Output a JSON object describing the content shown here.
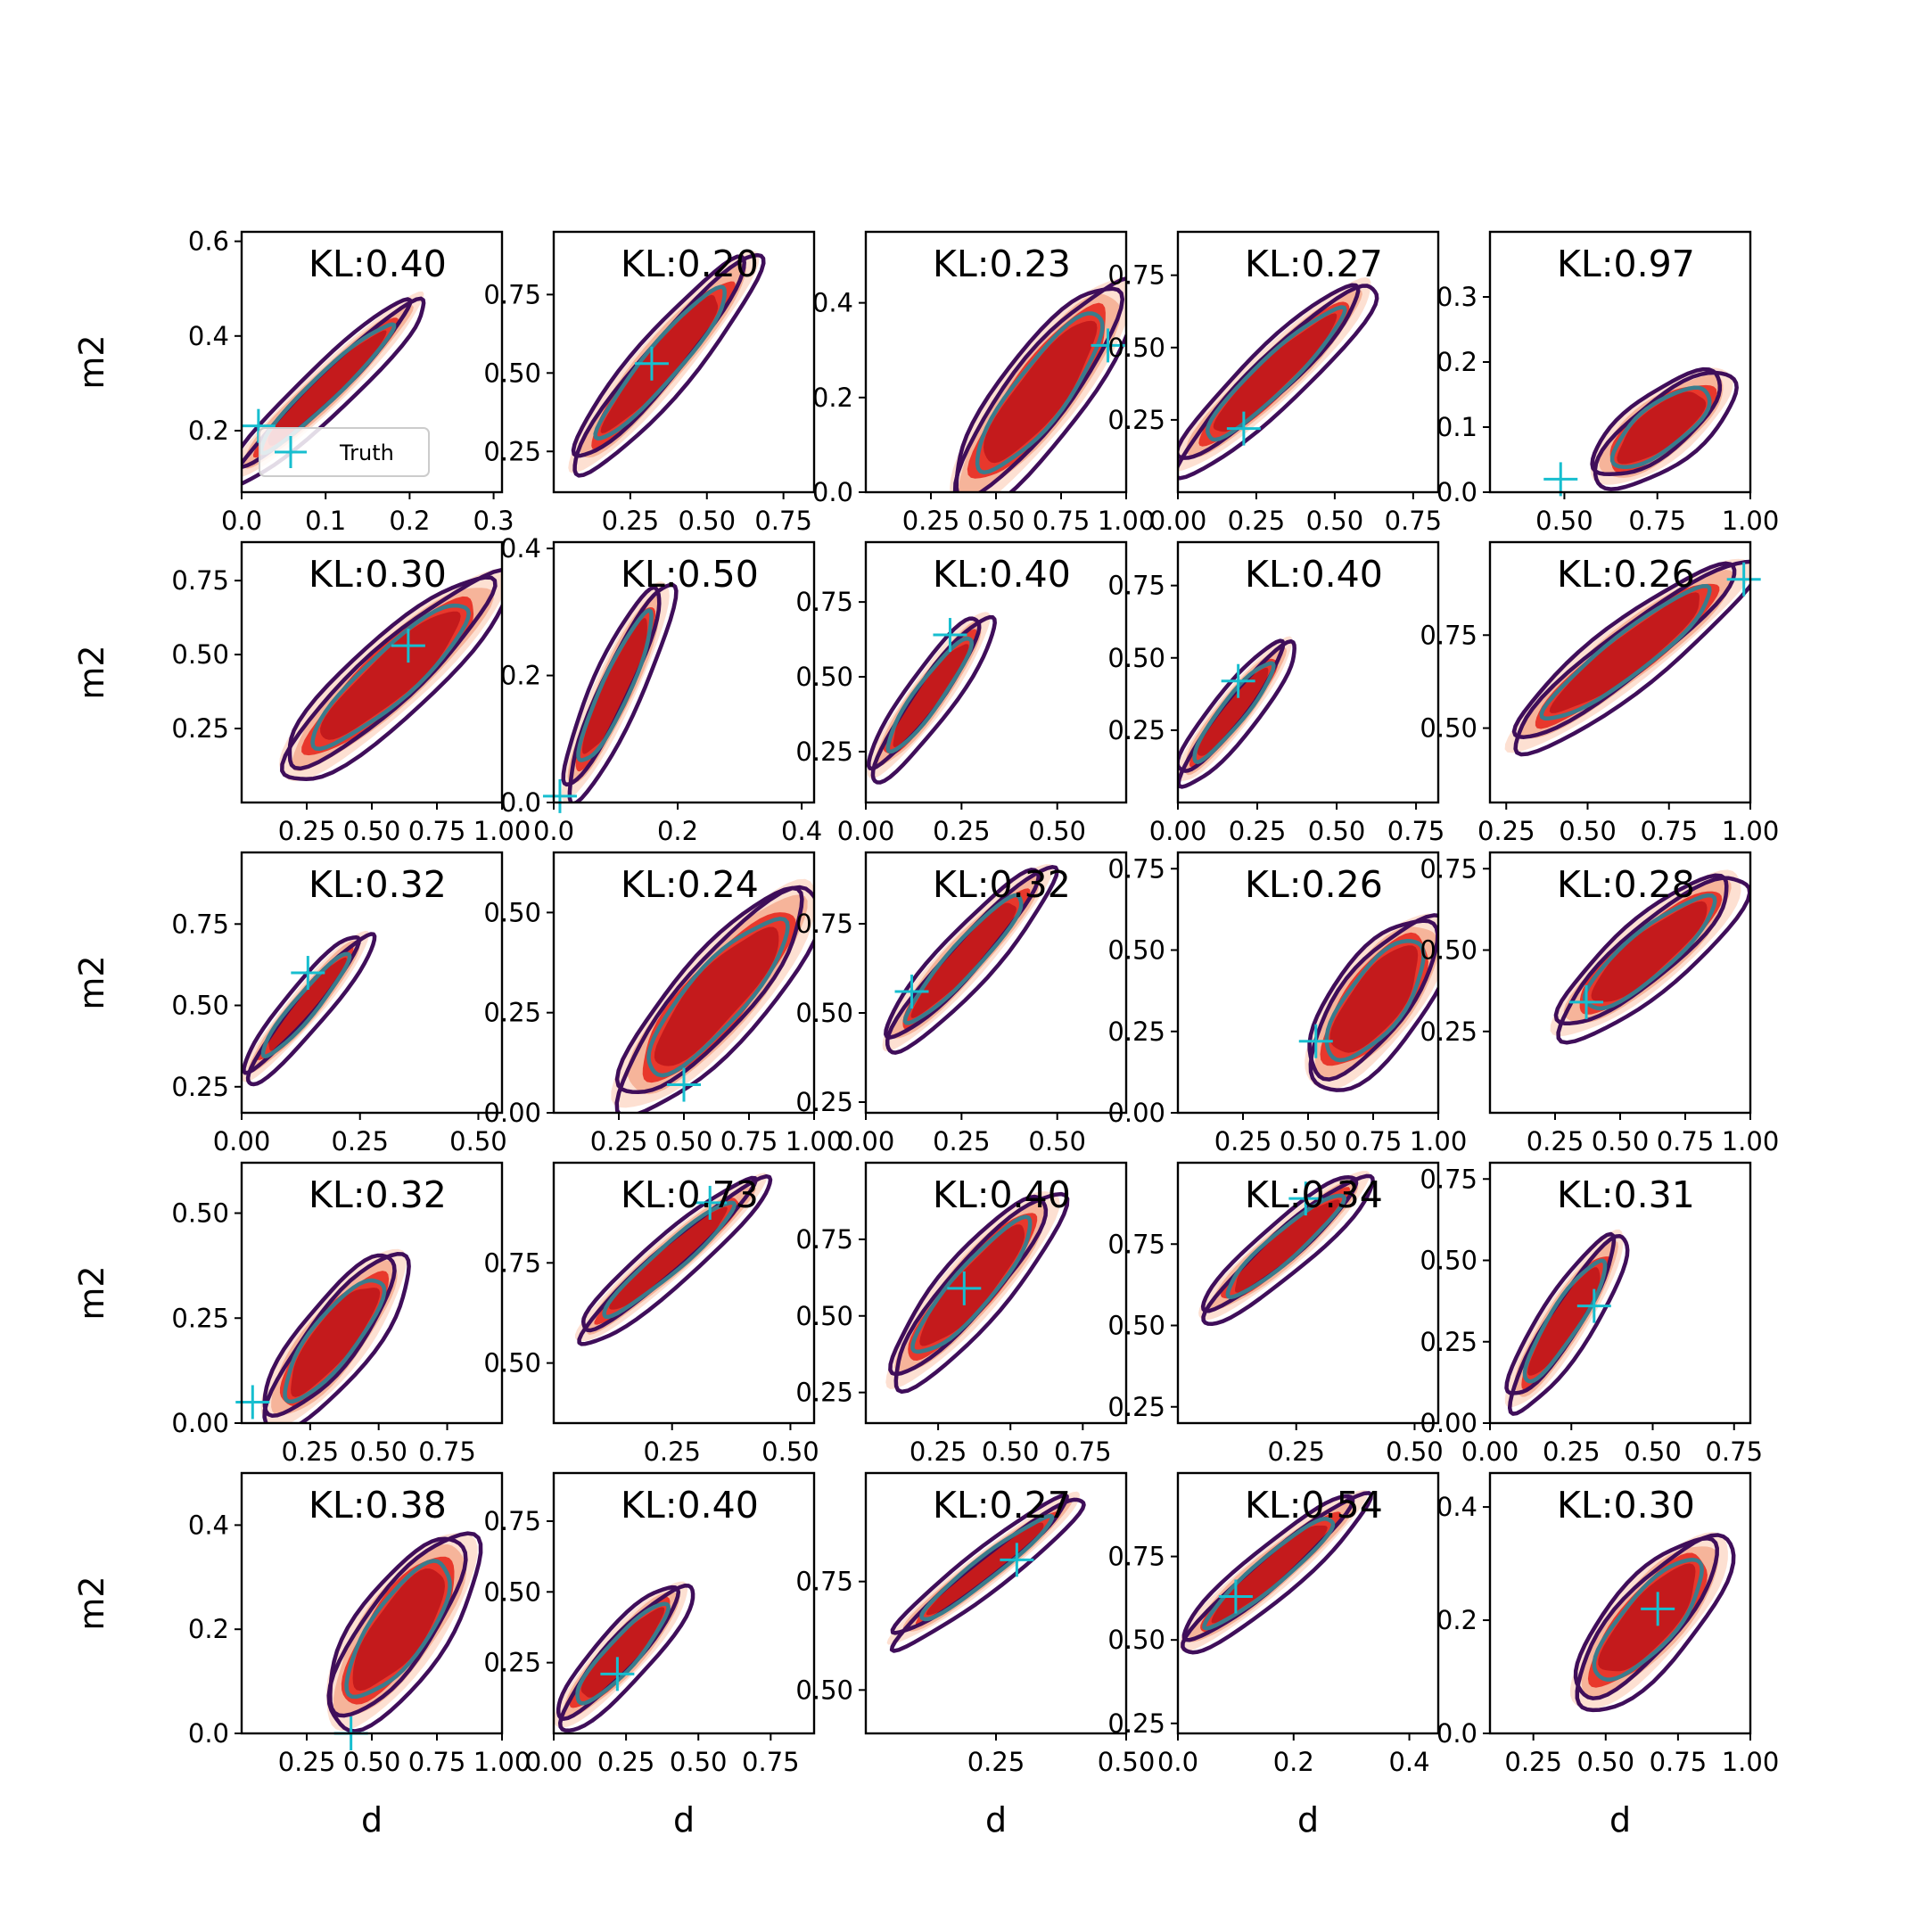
{
  "chart_data": {
    "type": "contour",
    "layout": {
      "rows": 5,
      "cols": 5
    },
    "xlabel": "d",
    "ylabel": "m2",
    "legend": {
      "label": "Truth",
      "placement": "lower-left",
      "panel": 0
    },
    "colors": {
      "fill_levels": [
        "#fde0d2",
        "#f6b49a",
        "#e8382c",
        "#c41a1c"
      ],
      "outer_contour": "#3f0e5a",
      "inner_contour": "#3a7c8c",
      "truth_marker": "#17becf"
    },
    "panels": [
      {
        "kl": "KL:0.40",
        "xlim": [
          0.0,
          0.31
        ],
        "ylim": [
          0.07,
          0.62
        ],
        "xticks": [
          0.0,
          0.1,
          0.2,
          0.3
        ],
        "yticks": [
          0.2,
          0.4,
          0.6
        ],
        "xtick_labels": [
          "0.0",
          "0.1",
          "0.2",
          "0.3"
        ],
        "ytick_labels": [
          "0.2",
          "0.4",
          "0.6"
        ],
        "truth": [
          0.02,
          0.21
        ],
        "cloud": {
          "x0": 0.0,
          "y0": 0.12,
          "x1": 0.2,
          "y1": 0.46,
          "w": 0.065
        }
      },
      {
        "kl": "KL:0.20",
        "xlim": [
          0.0,
          0.85
        ],
        "ylim": [
          0.12,
          0.95
        ],
        "xticks": [
          0.25,
          0.5,
          0.75
        ],
        "yticks": [
          0.25,
          0.5,
          0.75
        ],
        "xtick_labels": [
          "0.25",
          "0.50",
          "0.75"
        ],
        "ytick_labels": [
          "0.25",
          "0.50",
          "0.75"
        ],
        "truth": [
          0.32,
          0.53
        ],
        "cloud": {
          "x0": 0.09,
          "y0": 0.23,
          "x1": 0.62,
          "y1": 0.84,
          "w": 0.085
        }
      },
      {
        "kl": "KL:0.23",
        "xlim": [
          0.0,
          1.0
        ],
        "ylim": [
          0.0,
          0.55
        ],
        "xticks": [
          0.25,
          0.5,
          0.75,
          1.0
        ],
        "yticks": [
          0.0,
          0.2,
          0.4
        ],
        "xtick_labels": [
          "0.25",
          "0.50",
          "0.75",
          "1.00"
        ],
        "ytick_labels": [
          "0.0",
          "0.2",
          "0.4"
        ],
        "truth": [
          0.93,
          0.31
        ],
        "cloud": {
          "x0": 0.38,
          "y0": 0.0,
          "x1": 0.96,
          "y1": 0.42,
          "w": 0.13
        }
      },
      {
        "kl": "KL:0.27",
        "xlim": [
          0.0,
          0.83
        ],
        "ylim": [
          0.0,
          0.9
        ],
        "xticks": [
          0.0,
          0.25,
          0.5,
          0.75
        ],
        "yticks": [
          0.25,
          0.5,
          0.75
        ],
        "xtick_labels": [
          "0.00",
          "0.25",
          "0.50",
          "0.75"
        ],
        "ytick_labels": [
          "0.25",
          "0.50",
          "0.75"
        ],
        "truth": [
          0.21,
          0.22
        ],
        "cloud": {
          "x0": 0.03,
          "y0": 0.12,
          "x1": 0.58,
          "y1": 0.69,
          "w": 0.085
        }
      },
      {
        "kl": "KL:0.97",
        "xlim": [
          0.3,
          1.0
        ],
        "ylim": [
          0.0,
          0.4
        ],
        "xticks": [
          0.5,
          0.75,
          1.0
        ],
        "yticks": [
          0.0,
          0.1,
          0.2,
          0.3
        ],
        "xtick_labels": [
          "0.50",
          "0.75",
          "1.00"
        ],
        "ytick_labels": [
          "0.0",
          "0.1",
          "0.2",
          "0.3"
        ],
        "truth": [
          0.49,
          0.02
        ],
        "cloud": {
          "x0": 0.6,
          "y0": 0.03,
          "x1": 0.92,
          "y1": 0.17,
          "w": 0.11
        }
      },
      {
        "kl": "KL:0.30",
        "xlim": [
          0.0,
          1.0
        ],
        "ylim": [
          0.0,
          0.88
        ],
        "xticks": [
          0.25,
          0.5,
          0.75,
          1.0
        ],
        "yticks": [
          0.25,
          0.5,
          0.75
        ],
        "xtick_labels": [
          "0.25",
          "0.50",
          "0.75",
          "1.00"
        ],
        "ytick_labels": [
          "0.25",
          "0.50",
          "0.75"
        ],
        "truth": [
          0.64,
          0.53
        ],
        "cloud": {
          "x0": 0.2,
          "y0": 0.13,
          "x1": 0.95,
          "y1": 0.73,
          "w": 0.12
        }
      },
      {
        "kl": "KL:0.50",
        "xlim": [
          0.0,
          0.42
        ],
        "ylim": [
          0.0,
          0.41
        ],
        "xticks": [
          0.0,
          0.2,
          0.4
        ],
        "yticks": [
          0.0,
          0.2,
          0.4
        ],
        "xtick_labels": [
          "0.0",
          "0.2",
          "0.4"
        ],
        "ytick_labels": [
          "0.0",
          "0.2",
          "0.4"
        ],
        "truth": [
          0.01,
          0.01
        ],
        "cloud": {
          "x0": 0.03,
          "y0": 0.03,
          "x1": 0.17,
          "y1": 0.33,
          "w": 0.07
        }
      },
      {
        "kl": "KL:0.40",
        "xlim": [
          0.0,
          0.68
        ],
        "ylim": [
          0.08,
          0.95
        ],
        "xticks": [
          0.0,
          0.25,
          0.5
        ],
        "yticks": [
          0.25,
          0.5,
          0.75
        ],
        "xtick_labels": [
          "0.00",
          "0.25",
          "0.50"
        ],
        "ytick_labels": [
          "0.25",
          "0.50",
          "0.75"
        ],
        "truth": [
          0.22,
          0.64
        ],
        "cloud": {
          "x0": 0.03,
          "y0": 0.2,
          "x1": 0.3,
          "y1": 0.68,
          "w": 0.065
        }
      },
      {
        "kl": "KL:0.40",
        "xlim": [
          0.0,
          0.82
        ],
        "ylim": [
          0.0,
          0.9
        ],
        "xticks": [
          0.0,
          0.25,
          0.5,
          0.75
        ],
        "yticks": [
          0.25,
          0.5,
          0.75
        ],
        "xtick_labels": [
          "0.00",
          "0.25",
          "0.50",
          "0.75"
        ],
        "ytick_labels": [
          "0.25",
          "0.50",
          "0.75"
        ],
        "truth": [
          0.19,
          0.42
        ],
        "cloud": {
          "x0": 0.02,
          "y0": 0.1,
          "x1": 0.33,
          "y1": 0.53,
          "w": 0.06
        }
      },
      {
        "kl": "KL:0.26",
        "xlim": [
          0.2,
          1.0
        ],
        "ylim": [
          0.3,
          1.0
        ],
        "xticks": [
          0.25,
          0.5,
          0.75,
          1.0
        ],
        "yticks": [
          0.5,
          0.75
        ],
        "xtick_labels": [
          "0.25",
          "0.50",
          "0.75",
          "1.00"
        ],
        "ytick_labels": [
          "0.50",
          "0.75"
        ],
        "truth": [
          0.98,
          0.9
        ],
        "cloud": {
          "x0": 0.3,
          "y0": 0.48,
          "x1": 0.95,
          "y1": 0.92,
          "w": 0.1
        }
      },
      {
        "kl": "KL:0.32",
        "xlim": [
          0.0,
          0.55
        ],
        "ylim": [
          0.17,
          0.97
        ],
        "xticks": [
          0.0,
          0.25,
          0.5
        ],
        "yticks": [
          0.25,
          0.5,
          0.75
        ],
        "xtick_labels": [
          "0.00",
          "0.25",
          "0.50"
        ],
        "ytick_labels": [
          "0.25",
          "0.50",
          "0.75"
        ],
        "truth": [
          0.14,
          0.6
        ],
        "cloud": {
          "x0": 0.02,
          "y0": 0.3,
          "x1": 0.25,
          "y1": 0.7,
          "w": 0.055
        }
      },
      {
        "kl": "KL:0.24",
        "xlim": [
          0.0,
          1.0
        ],
        "ylim": [
          0.0,
          0.65
        ],
        "xticks": [
          0.25,
          0.5,
          0.75,
          1.0
        ],
        "yticks": [
          0.0,
          0.25,
          0.5
        ],
        "xtick_labels": [
          "0.25",
          "0.50",
          "0.75",
          "1.00"
        ],
        "ytick_labels": [
          "0.00",
          "0.25",
          "0.50"
        ],
        "truth": [
          0.5,
          0.07
        ],
        "cloud": {
          "x0": 0.3,
          "y0": 0.05,
          "x1": 0.95,
          "y1": 0.53,
          "w": 0.14
        }
      },
      {
        "kl": "KL:0.32",
        "xlim": [
          0.0,
          0.68
        ],
        "ylim": [
          0.22,
          0.95
        ],
        "xticks": [
          0.0,
          0.25,
          0.5
        ],
        "yticks": [
          0.25,
          0.5,
          0.75
        ],
        "xtick_labels": [
          "0.00",
          "0.25",
          "0.50"
        ],
        "ytick_labels": [
          "0.25",
          "0.50",
          "0.75"
        ],
        "truth": [
          0.12,
          0.56
        ],
        "cloud": {
          "x0": 0.07,
          "y0": 0.43,
          "x1": 0.45,
          "y1": 0.88,
          "w": 0.075
        }
      },
      {
        "kl": "KL:0.26",
        "xlim": [
          0.0,
          1.0
        ],
        "ylim": [
          0.0,
          0.8
        ],
        "xticks": [
          0.25,
          0.5,
          0.75,
          1.0
        ],
        "yticks": [
          0.0,
          0.25,
          0.5,
          0.75
        ],
        "xtick_labels": [
          "0.25",
          "0.50",
          "0.75",
          "1.00"
        ],
        "ytick_labels": [
          "0.00",
          "0.25",
          "0.50",
          "0.75"
        ],
        "truth": [
          0.53,
          0.22
        ],
        "cloud": {
          "x0": 0.55,
          "y0": 0.12,
          "x1": 0.97,
          "y1": 0.57,
          "w": 0.14
        }
      },
      {
        "kl": "KL:0.28",
        "xlim": [
          0.0,
          1.0
        ],
        "ylim": [
          0.0,
          0.8
        ],
        "xticks": [
          0.25,
          0.5,
          0.75,
          1.0
        ],
        "yticks": [
          0.25,
          0.5,
          0.75
        ],
        "xtick_labels": [
          "0.25",
          "0.50",
          "0.75",
          "1.00"
        ],
        "ytick_labels": [
          "0.25",
          "0.50",
          "0.75"
        ],
        "truth": [
          0.37,
          0.34
        ],
        "cloud": {
          "x0": 0.3,
          "y0": 0.28,
          "x1": 0.92,
          "y1": 0.7,
          "w": 0.11
        }
      },
      {
        "kl": "KL:0.32",
        "xlim": [
          0.0,
          0.95
        ],
        "ylim": [
          0.0,
          0.62
        ],
        "xticks": [
          0.25,
          0.5,
          0.75
        ],
        "yticks": [
          0.0,
          0.25,
          0.5
        ],
        "xtick_labels": [
          "0.25",
          "0.50",
          "0.75"
        ],
        "ytick_labels": [
          "0.00",
          "0.25",
          "0.50"
        ],
        "truth": [
          0.04,
          0.05
        ],
        "cloud": {
          "x0": 0.12,
          "y0": 0.02,
          "x1": 0.55,
          "y1": 0.38,
          "w": 0.11
        }
      },
      {
        "kl": "KL:0.73",
        "xlim": [
          0.0,
          0.55
        ],
        "ylim": [
          0.35,
          1.0
        ],
        "xticks": [
          0.25,
          0.5
        ],
        "yticks": [
          0.5,
          0.75
        ],
        "xtick_labels": [
          "0.25",
          "0.50"
        ],
        "ytick_labels": [
          "0.50",
          "0.75"
        ],
        "truth": [
          0.33,
          0.9
        ],
        "cloud": {
          "x0": 0.07,
          "y0": 0.58,
          "x1": 0.42,
          "y1": 0.94,
          "w": 0.065
        }
      },
      {
        "kl": "KL:0.40",
        "xlim": [
          0.0,
          0.9
        ],
        "ylim": [
          0.15,
          1.0
        ],
        "xticks": [
          0.25,
          0.5,
          0.75
        ],
        "yticks": [
          0.25,
          0.5,
          0.75
        ],
        "xtick_labels": [
          "0.25",
          "0.50",
          "0.75"
        ],
        "ytick_labels": [
          "0.25",
          "0.50",
          "0.75"
        ],
        "truth": [
          0.34,
          0.59
        ],
        "cloud": {
          "x0": 0.12,
          "y0": 0.32,
          "x1": 0.62,
          "y1": 0.87,
          "w": 0.1
        }
      },
      {
        "kl": "KL:0.34",
        "xlim": [
          0.0,
          0.55
        ],
        "ylim": [
          0.2,
          1.0
        ],
        "xticks": [
          0.25,
          0.5
        ],
        "yticks": [
          0.25,
          0.5,
          0.75
        ],
        "xtick_labels": [
          "0.25",
          "0.50"
        ],
        "ytick_labels": [
          "0.25",
          "0.50",
          "0.75"
        ],
        "truth": [
          0.27,
          0.89
        ],
        "cloud": {
          "x0": 0.07,
          "y0": 0.55,
          "x1": 0.38,
          "y1": 0.94,
          "w": 0.07
        }
      },
      {
        "kl": "KL:0.31",
        "xlim": [
          0.0,
          0.8
        ],
        "ylim": [
          0.0,
          0.8
        ],
        "xticks": [
          0.0,
          0.25,
          0.5,
          0.75
        ],
        "yticks": [
          0.0,
          0.25,
          0.5,
          0.75
        ],
        "xtick_labels": [
          "0.00",
          "0.25",
          "0.50",
          "0.75"
        ],
        "ytick_labels": [
          "0.00",
          "0.25",
          "0.50",
          "0.75"
        ],
        "truth": [
          0.32,
          0.36
        ],
        "cloud": {
          "x0": 0.08,
          "y0": 0.08,
          "x1": 0.38,
          "y1": 0.55,
          "w": 0.075
        }
      },
      {
        "kl": "KL:0.38",
        "xlim": [
          0.0,
          1.0
        ],
        "ylim": [
          0.0,
          0.5
        ],
        "xticks": [
          0.25,
          0.5,
          0.75,
          1.0
        ],
        "yticks": [
          0.0,
          0.2,
          0.4
        ],
        "xtick_labels": [
          "0.25",
          "0.50",
          "0.75",
          "1.00"
        ],
        "ytick_labels": [
          "0.0",
          "0.2",
          "0.4"
        ],
        "truth": [
          0.42,
          0.0
        ],
        "cloud": {
          "x0": 0.38,
          "y0": 0.04,
          "x1": 0.83,
          "y1": 0.36,
          "w": 0.14
        }
      },
      {
        "kl": "KL:0.40",
        "xlim": [
          0.0,
          0.9
        ],
        "ylim": [
          0.0,
          0.92
        ],
        "xticks": [
          0.0,
          0.25,
          0.5,
          0.75
        ],
        "yticks": [
          0.25,
          0.5,
          0.75
        ],
        "xtick_labels": [
          "0.00",
          "0.25",
          "0.50",
          "0.75"
        ],
        "ytick_labels": [
          "0.25",
          "0.50",
          "0.75"
        ],
        "truth": [
          0.22,
          0.21
        ],
        "cloud": {
          "x0": 0.04,
          "y0": 0.06,
          "x1": 0.43,
          "y1": 0.5,
          "w": 0.075
        }
      },
      {
        "kl": "KL:0.27",
        "xlim": [
          0.0,
          0.5
        ],
        "ylim": [
          0.4,
          1.0
        ],
        "xticks": [
          0.25,
          0.5
        ],
        "yticks": [
          0.5,
          0.75
        ],
        "xtick_labels": [
          "0.25",
          "0.50"
        ],
        "ytick_labels": [
          "0.50",
          "0.75"
        ],
        "truth": [
          0.29,
          0.8
        ],
        "cloud": {
          "x0": 0.07,
          "y0": 0.63,
          "x1": 0.39,
          "y1": 0.93,
          "w": 0.055
        }
      },
      {
        "kl": "KL:0.54",
        "xlim": [
          0.0,
          0.45
        ],
        "ylim": [
          0.22,
          1.0
        ],
        "xticks": [
          0.0,
          0.2,
          0.4
        ],
        "yticks": [
          0.25,
          0.5,
          0.75
        ],
        "xtick_labels": [
          "0.0",
          "0.2",
          "0.4"
        ],
        "ytick_labels": [
          "0.25",
          "0.50",
          "0.75"
        ],
        "truth": [
          0.1,
          0.63
        ],
        "cloud": {
          "x0": 0.02,
          "y0": 0.5,
          "x1": 0.3,
          "y1": 0.91,
          "w": 0.07
        }
      },
      {
        "kl": "KL:0.30",
        "xlim": [
          0.1,
          1.0
        ],
        "ylim": [
          0.0,
          0.46
        ],
        "xticks": [
          0.25,
          0.5,
          0.75,
          1.0
        ],
        "yticks": [
          0.0,
          0.2,
          0.4
        ],
        "xtick_labels": [
          "0.25",
          "0.50",
          "0.75",
          "1.00"
        ],
        "ytick_labels": [
          "0.0",
          "0.2",
          "0.4"
        ],
        "truth": [
          0.68,
          0.22
        ],
        "cloud": {
          "x0": 0.43,
          "y0": 0.07,
          "x1": 0.87,
          "y1": 0.33,
          "w": 0.13
        }
      }
    ]
  }
}
